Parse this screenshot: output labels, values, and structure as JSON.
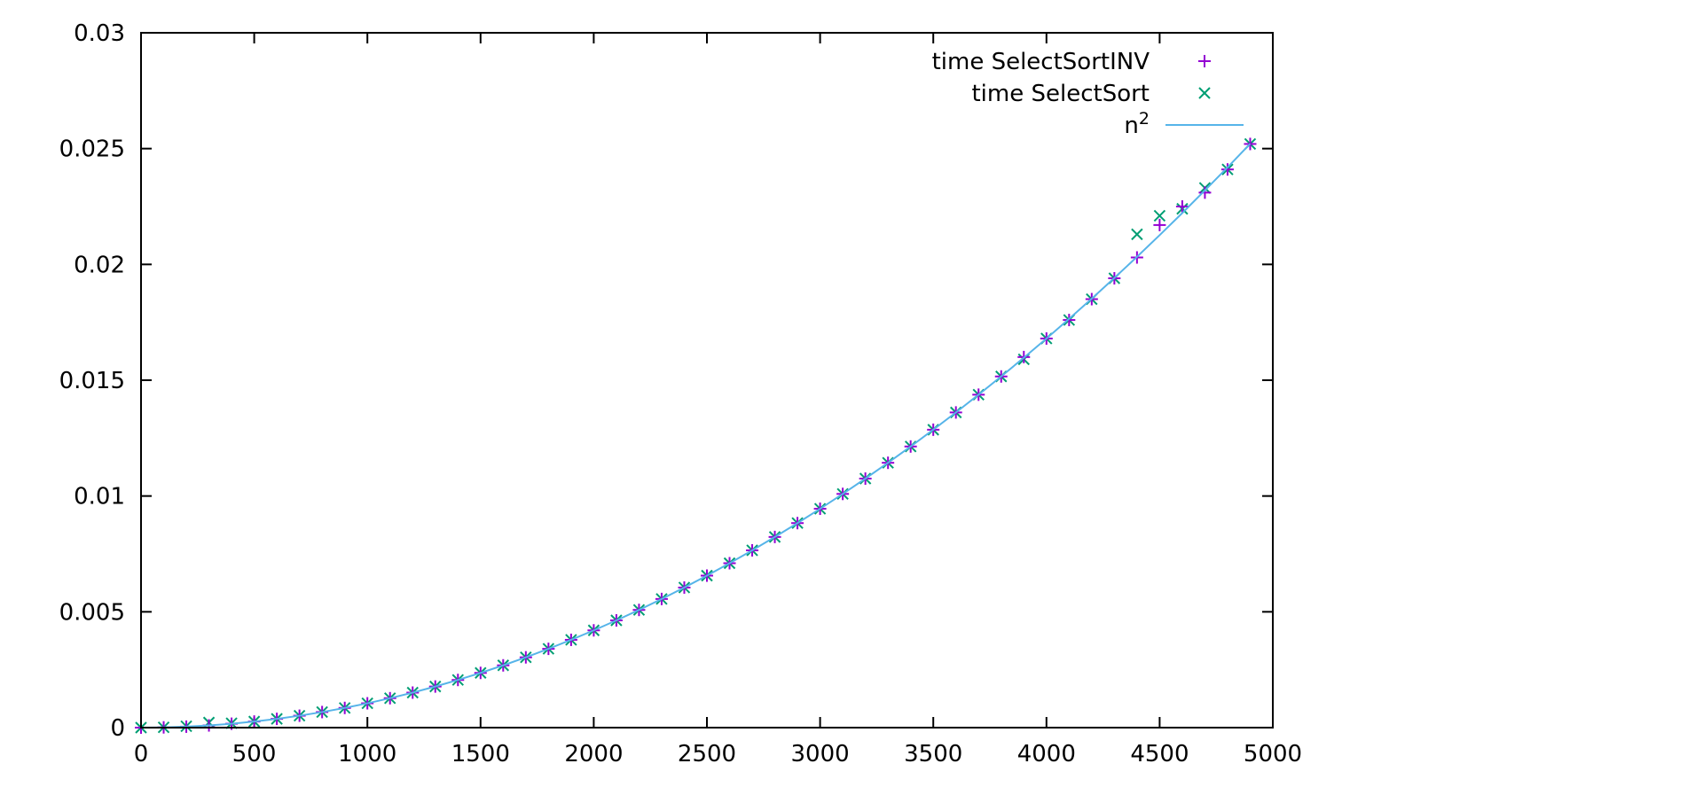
{
  "chart_data": {
    "type": "scatter",
    "title": "",
    "xlabel": "",
    "ylabel": "",
    "xlim": [
      0,
      5000
    ],
    "ylim": [
      0,
      0.03
    ],
    "xticks": [
      0,
      500,
      1000,
      1500,
      2000,
      2500,
      3000,
      3500,
      4000,
      4500,
      5000
    ],
    "xtick_labels": [
      "0",
      "500",
      "1000",
      "1500",
      "2000",
      "2500",
      "3000",
      "3500",
      "4000",
      "4500",
      "5000"
    ],
    "yticks": [
      0,
      0.005,
      0.01,
      0.015,
      0.02,
      0.025,
      0.03
    ],
    "ytick_labels": [
      "0",
      "0.005",
      "0.01",
      "0.015",
      "0.02",
      "0.025",
      "0.03"
    ],
    "grid": false,
    "legend_position": "top-right",
    "x": [
      0,
      100,
      200,
      300,
      400,
      500,
      600,
      700,
      800,
      900,
      1000,
      1100,
      1200,
      1300,
      1400,
      1500,
      1600,
      1700,
      1800,
      1900,
      2000,
      2100,
      2200,
      2300,
      2400,
      2500,
      2600,
      2700,
      2800,
      2900,
      3000,
      3100,
      3200,
      3300,
      3400,
      3500,
      3600,
      3700,
      3800,
      3900,
      4000,
      4100,
      4200,
      4300,
      4400,
      4500,
      4600,
      4700,
      4800,
      4900
    ],
    "series": [
      {
        "name": "time SelectSortINV",
        "marker": "plus",
        "color": "#9400d3",
        "values": [
          0,
          1.05e-05,
          4.2e-05,
          9.45e-05,
          0.000168,
          0.0002625,
          0.000378,
          0.0005145,
          0.000672,
          0.0008505,
          0.00105,
          0.0012705,
          0.001512,
          0.0017745,
          0.002058,
          0.0023625,
          0.002688,
          0.0030345,
          0.003402,
          0.0037905,
          0.0042,
          0.0046305,
          0.005082,
          0.0055545,
          0.006048,
          0.0065625,
          0.007098,
          0.0076545,
          0.008232,
          0.0088305,
          0.00945,
          0.0100905,
          0.010752,
          0.0114345,
          0.012138,
          0.0128625,
          0.013608,
          0.0143745,
          0.015162,
          0.016,
          0.0168,
          0.0176,
          0.0185,
          0.0194,
          0.0203,
          0.0217,
          0.0225,
          0.0231,
          0.0241,
          0.0252
        ]
      },
      {
        "name": "time SelectSort",
        "marker": "cross",
        "color": "#009e73",
        "values": [
          0,
          1.05e-05,
          6e-05,
          0.00022,
          0.00019,
          0.0002625,
          0.000378,
          0.0005145,
          0.000672,
          0.0008505,
          0.00105,
          0.0012705,
          0.001512,
          0.0017745,
          0.002058,
          0.0023625,
          0.002688,
          0.0030345,
          0.003402,
          0.0037905,
          0.0042,
          0.0046305,
          0.005082,
          0.0055545,
          0.006048,
          0.0065625,
          0.007098,
          0.0076545,
          0.008232,
          0.0088305,
          0.00945,
          0.0100905,
          0.010752,
          0.0114345,
          0.012138,
          0.0128625,
          0.013608,
          0.0143745,
          0.015162,
          0.0159,
          0.0168,
          0.0176,
          0.0185,
          0.0194,
          0.0213,
          0.0221,
          0.0224,
          0.0233,
          0.0241,
          0.0252
        ]
      },
      {
        "name": "n2",
        "name_base": "n",
        "name_sup": "2",
        "marker": "line",
        "color": "#56b4e9",
        "values": [
          0,
          1.05e-05,
          4.2e-05,
          9.45e-05,
          0.000168,
          0.0002625,
          0.000378,
          0.0005145,
          0.000672,
          0.0008505,
          0.00105,
          0.0012705,
          0.001512,
          0.0017745,
          0.002058,
          0.0023625,
          0.002688,
          0.0030345,
          0.003402,
          0.0037905,
          0.0042,
          0.0046305,
          0.005082,
          0.0055545,
          0.006048,
          0.0065625,
          0.007098,
          0.0076545,
          0.008232,
          0.0088305,
          0.00945,
          0.0100905,
          0.010752,
          0.0114345,
          0.012138,
          0.0128625,
          0.013608,
          0.0143745,
          0.015162,
          0.0159705,
          0.0168,
          0.0176505,
          0.018522,
          0.0194145,
          0.020328,
          0.0212625,
          0.022218,
          0.0231945,
          0.024192,
          0.0252105
        ]
      }
    ]
  }
}
